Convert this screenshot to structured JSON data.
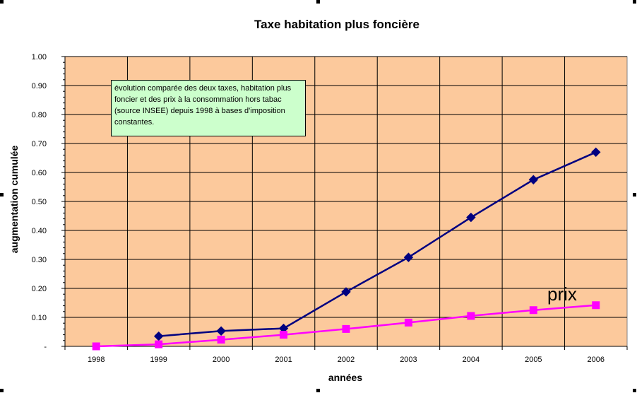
{
  "chart_data": {
    "type": "line",
    "title": "Taxe habitation plus foncière",
    "xlabel": "années",
    "ylabel": "augmentation cumulée",
    "categories": [
      "1998",
      "1999",
      "2000",
      "2001",
      "2002",
      "2003",
      "2004",
      "2005",
      "2006"
    ],
    "ylim": [
      0,
      1.0
    ],
    "yticks": [
      {
        "value": 0,
        "label": "-"
      },
      {
        "value": 0.1,
        "label": "0.10"
      },
      {
        "value": 0.2,
        "label": "0.20"
      },
      {
        "value": 0.3,
        "label": "0.30"
      },
      {
        "value": 0.4,
        "label": "0.40"
      },
      {
        "value": 0.5,
        "label": "0.50"
      },
      {
        "value": 0.6,
        "label": "0.60"
      },
      {
        "value": 0.7,
        "label": "0.70"
      },
      {
        "value": 0.8,
        "label": "0.80"
      },
      {
        "value": 0.9,
        "label": "0.90"
      },
      {
        "value": 1.0,
        "label": "1.00"
      }
    ],
    "grid": true,
    "plot_background": "#fcc99c",
    "series": [
      {
        "key": "taxes",
        "color": "#000080",
        "marker": "diamond",
        "values": [
          null,
          0.035,
          0.053,
          0.062,
          0.188,
          0.307,
          0.445,
          0.575,
          0.67
        ]
      },
      {
        "key": "prix",
        "name": "prix",
        "color": "#ff00ff",
        "marker": "square",
        "values": [
          0.0,
          0.007,
          0.023,
          0.04,
          0.06,
          0.082,
          0.105,
          0.125,
          0.142
        ]
      }
    ],
    "annotation": "évolution comparée des deux taxes, habitation plus foncier et des  prix à la consommation hors tabac (source INSEE) depuis 1998  à bases d'imposition constantes."
  }
}
